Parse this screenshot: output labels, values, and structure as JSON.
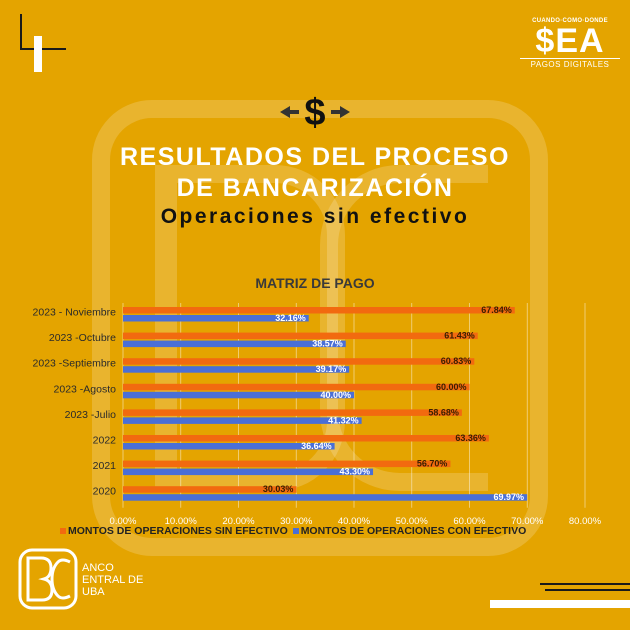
{
  "brand": {
    "tagline": "CUANDO·COMO·DONDE",
    "name": "$EA",
    "subtitle": "PAGOS DIGITALES"
  },
  "header": {
    "title_line1": "RESULTADOS DEL PROCESO",
    "title_line2": "DE BANCARIZACIÓN",
    "subtitle": "Operaciones sin efectivo"
  },
  "footer": {
    "logo_line1": "ANCO",
    "logo_line2": "ENTRAL DE",
    "logo_line3": "UBA"
  },
  "colors": {
    "background": "#e4a400",
    "series_sin": "#f26a0f",
    "series_con": "#4a6fd6"
  },
  "chart_data": {
    "type": "bar",
    "orientation": "horizontal",
    "title": "MATRIZ DE PAGO",
    "categories": [
      "2023 - Noviembre",
      "2023 -Octubre",
      "2023 -Septiembre",
      "2023 -Agosto",
      "2023 -Julio",
      "2022",
      "2021",
      "2020"
    ],
    "series": [
      {
        "name": "MONTOS DE OPERACIONES SIN EFECTIVO",
        "values": [
          67.84,
          61.43,
          60.83,
          60.0,
          58.68,
          63.36,
          56.7,
          30.03
        ],
        "labels": [
          "67.84%",
          "61.43%",
          "60.83%",
          "60.00%",
          "58.68%",
          "63.36%",
          "56.70%",
          "30.03%"
        ]
      },
      {
        "name": "MONTOS DE OPERACIONES CON EFECTIVO",
        "values": [
          32.16,
          38.57,
          39.17,
          40.0,
          41.32,
          36.64,
          43.3,
          69.97
        ],
        "labels": [
          "32.16%",
          "38.57%",
          "39.17%",
          "40.00%",
          "41.32%",
          "36.64%",
          "43.30%",
          "69.97%"
        ]
      }
    ],
    "xlim": [
      0,
      80
    ],
    "x_ticks": [
      "0.00%",
      "10.00%",
      "20.00%",
      "30.00%",
      "40.00%",
      "50.00%",
      "60.00%",
      "70.00%",
      "80.00%"
    ],
    "grid": true,
    "legend": "bottom"
  }
}
